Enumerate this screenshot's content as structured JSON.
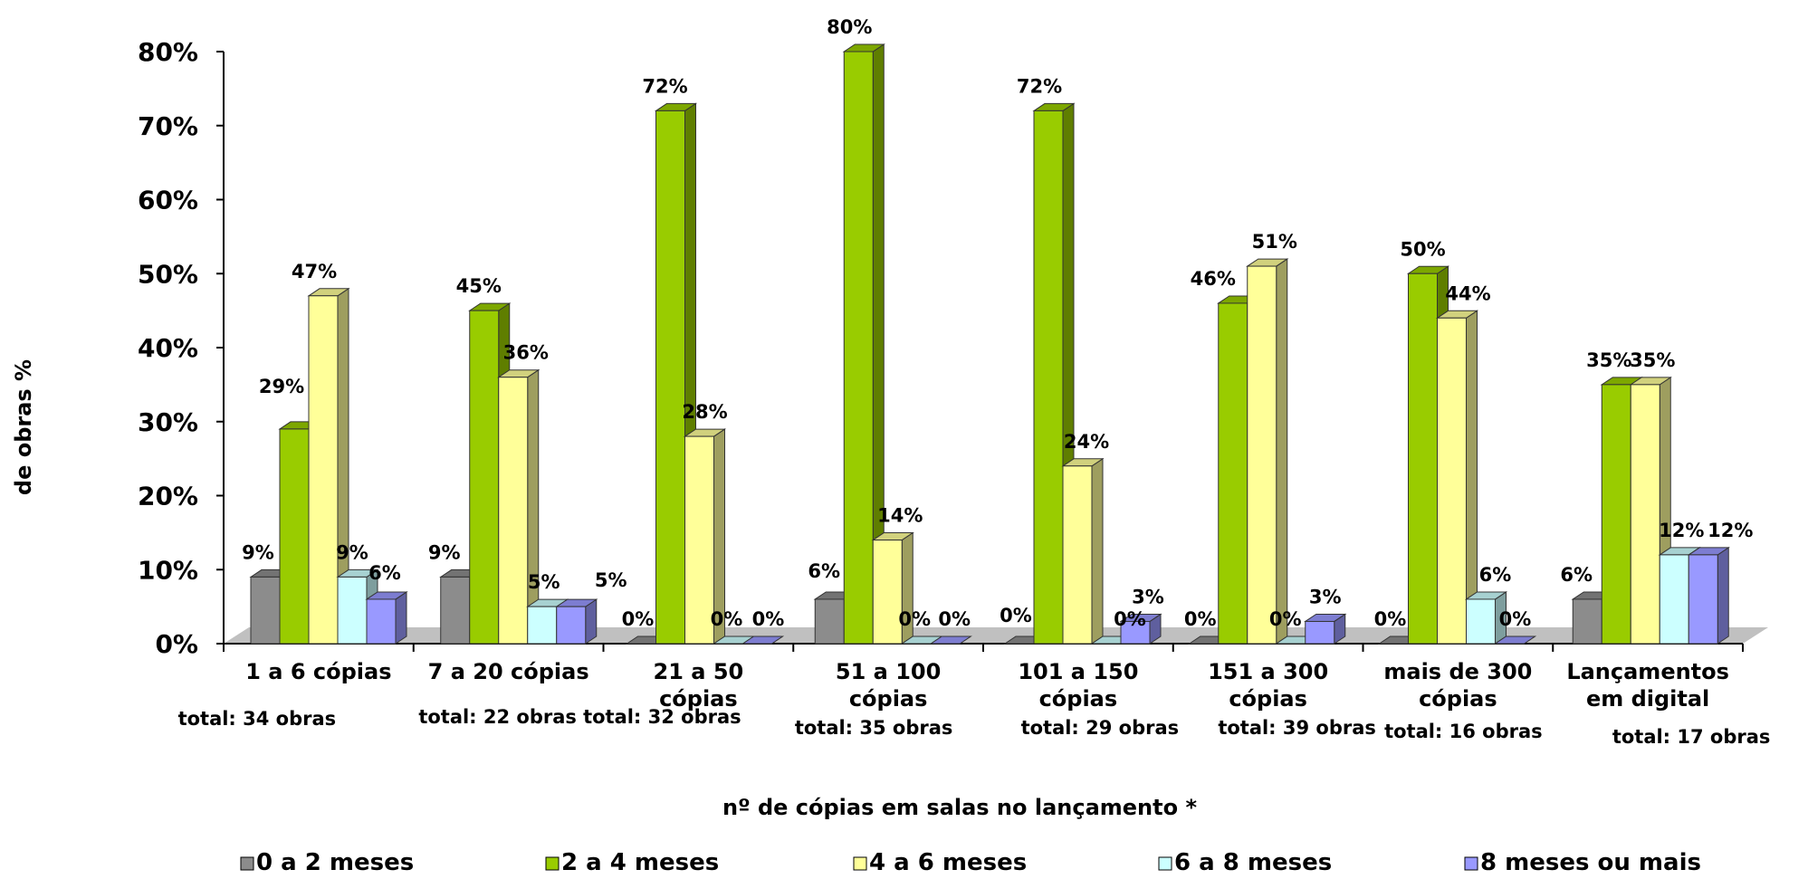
{
  "chart_data": {
    "type": "bar",
    "xlabel": "nº de cópias em salas no lançamento *",
    "ylabel": "de obras %",
    "ylim": [
      0,
      80
    ],
    "yticks": [
      "0%",
      "10%",
      "20%",
      "30%",
      "40%",
      "50%",
      "60%",
      "70%",
      "80%"
    ],
    "categories": [
      [
        "1 a 6 cópias"
      ],
      [
        "7 a 20 cópias"
      ],
      [
        "21 a 50",
        "cópias"
      ],
      [
        "51 a 100",
        "cópias"
      ],
      [
        "101 a 150",
        "cópias"
      ],
      [
        "151 a 300",
        "cópias"
      ],
      [
        "mais de 300",
        "cópias"
      ],
      [
        "Lançamentos",
        "em digital"
      ]
    ],
    "totals": [
      "total: 34 obras",
      "total: 22 obras",
      "total: 32 obras",
      "total: 35 obras",
      "total: 29 obras",
      "total: 39 obras",
      "total: 16 obras",
      "total: 17 obras"
    ],
    "series": [
      {
        "name": "0 a 2 meses",
        "color": "#8c8c8c",
        "values": [
          9,
          9,
          0,
          6,
          0,
          0,
          0,
          6
        ]
      },
      {
        "name": "2 a 4 meses",
        "color": "#99cc00",
        "values": [
          29,
          45,
          72,
          80,
          72,
          46,
          50,
          35
        ]
      },
      {
        "name": "4 a 6 meses",
        "color": "#ffff99",
        "values": [
          47,
          36,
          28,
          14,
          24,
          51,
          44,
          35
        ]
      },
      {
        "name": "6 a 8 meses",
        "color": "#ccffff",
        "values": [
          9,
          5,
          0,
          0,
          0,
          0,
          6,
          12
        ]
      },
      {
        "name": "8 meses ou mais",
        "color": "#9999ff",
        "values": [
          6,
          5,
          0,
          0,
          3,
          3,
          0,
          12
        ]
      }
    ],
    "data_labels": [
      [
        "9%",
        "29%",
        "47%",
        "9%",
        "6%"
      ],
      [
        "9%",
        "45%",
        "36%",
        "5%",
        "5%"
      ],
      [
        "0%",
        "72%",
        "28%",
        "0%",
        "0%"
      ],
      [
        "6%",
        "80%",
        "14%",
        "0%",
        "0%"
      ],
      [
        "0%",
        "72%",
        "24%",
        "0%",
        "3%"
      ],
      [
        "0%",
        "46%",
        "51%",
        "0%",
        "3%"
      ],
      [
        "0%",
        "50%",
        "44%",
        "6%",
        "0%"
      ],
      [
        "6%",
        "35%",
        "35%",
        "12%",
        "12%"
      ]
    ],
    "legend_position": "bottom",
    "grid": false
  }
}
